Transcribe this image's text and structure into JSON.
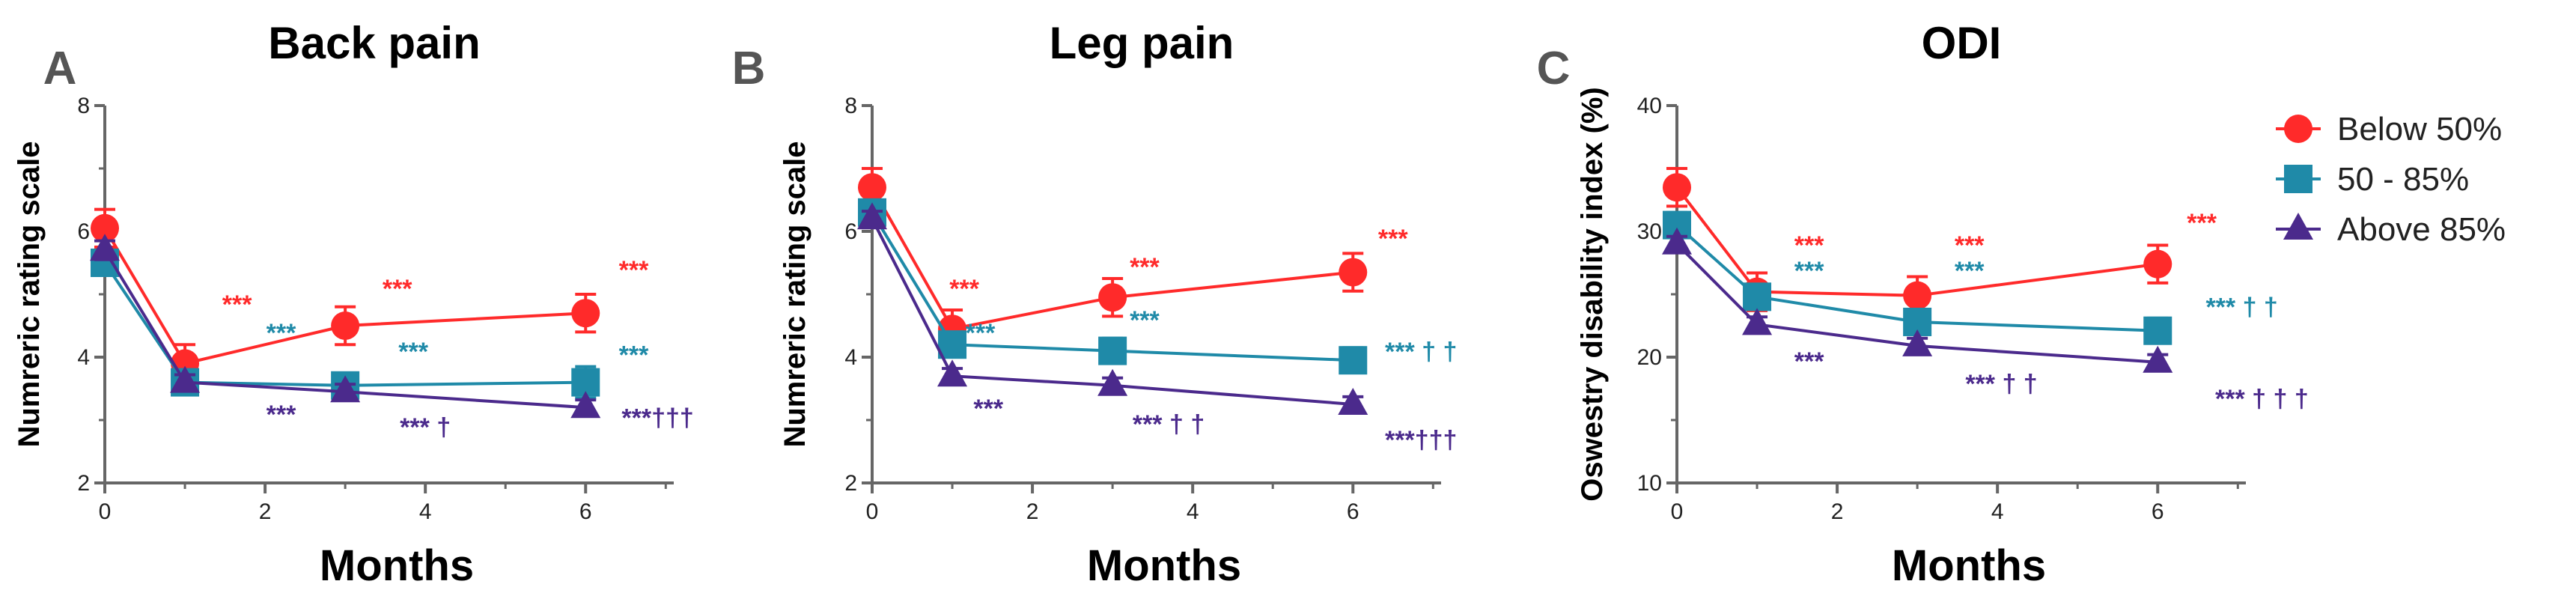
{
  "colors": {
    "below": "#ff2a2a",
    "mid": "#1f8aa8",
    "above": "#4b2a8c"
  },
  "legend": [
    {
      "key": "below",
      "label": "Below 50%",
      "marker": "circle"
    },
    {
      "key": "mid",
      "label": "50 - 85%",
      "marker": "square"
    },
    {
      "key": "above",
      "label": "Above 85%",
      "marker": "triangle"
    }
  ],
  "chart_data": [
    {
      "type": "line",
      "letter": "A",
      "title": "Back pain",
      "xlabel": "Months",
      "ylabel": "Numreric rating scale",
      "xlim": [
        0,
        7.1
      ],
      "ylim": [
        2,
        8
      ],
      "xticks": [
        0,
        2,
        4,
        6
      ],
      "yticks": [
        2,
        4,
        6,
        8
      ],
      "x": [
        0,
        1,
        3,
        6
      ],
      "series": [
        {
          "key": "below",
          "name": "Below 50%",
          "values": [
            6.05,
            3.9,
            4.5,
            4.7
          ],
          "err": [
            0.3,
            0.3,
            0.3,
            0.3
          ]
        },
        {
          "key": "mid",
          "name": "50 - 85%",
          "values": [
            5.5,
            3.6,
            3.55,
            3.6
          ],
          "err": [
            0.2,
            0.2,
            0.2,
            0.25
          ]
        },
        {
          "key": "above",
          "name": "Above 85%",
          "values": [
            5.7,
            3.6,
            3.45,
            3.2
          ],
          "err": [
            0.15,
            0.12,
            0.12,
            0.12
          ]
        }
      ],
      "annotations": [
        {
          "key": "below",
          "text": "***",
          "x": 1.65,
          "y": 4.7
        },
        {
          "key": "below",
          "text": "***",
          "x": 3.65,
          "y": 4.95
        },
        {
          "key": "below",
          "text": "***",
          "x": 6.6,
          "y": 5.25
        },
        {
          "key": "mid",
          "text": "***",
          "x": 2.2,
          "y": 4.25
        },
        {
          "key": "mid",
          "text": "***",
          "x": 3.85,
          "y": 3.95
        },
        {
          "key": "mid",
          "text": "***",
          "x": 6.6,
          "y": 3.9
        },
        {
          "key": "above",
          "text": "***",
          "x": 2.2,
          "y": 2.95
        },
        {
          "key": "above",
          "text": "*** †",
          "x": 4.0,
          "y": 2.75
        },
        {
          "key": "above",
          "text": "***†††",
          "x": 6.9,
          "y": 2.9
        }
      ]
    },
    {
      "type": "line",
      "letter": "B",
      "title": "Leg pain",
      "xlabel": "Months",
      "ylabel": "Numreric rating scale",
      "xlim": [
        0,
        7.1
      ],
      "ylim": [
        2,
        8
      ],
      "xticks": [
        0,
        2,
        4,
        6
      ],
      "yticks": [
        2,
        4,
        6,
        8
      ],
      "x": [
        0,
        1,
        3,
        6
      ],
      "series": [
        {
          "key": "below",
          "name": "Below 50%",
          "values": [
            6.7,
            4.45,
            4.95,
            5.35
          ],
          "err": [
            0.3,
            0.3,
            0.3,
            0.3
          ]
        },
        {
          "key": "mid",
          "name": "50 - 85%",
          "values": [
            6.3,
            4.2,
            4.1,
            3.95
          ],
          "err": [
            0.2,
            0.2,
            0.2,
            0.2
          ]
        },
        {
          "key": "above",
          "name": "Above 85%",
          "values": [
            6.2,
            3.7,
            3.55,
            3.25
          ],
          "err": [
            0.12,
            0.12,
            0.12,
            0.12
          ]
        }
      ],
      "annotations": [
        {
          "key": "below",
          "text": "***",
          "x": 1.15,
          "y": 4.95
        },
        {
          "key": "below",
          "text": "***",
          "x": 3.4,
          "y": 5.3
        },
        {
          "key": "below",
          "text": "***",
          "x": 6.5,
          "y": 5.75
        },
        {
          "key": "mid",
          "text": "***",
          "x": 1.35,
          "y": 4.25
        },
        {
          "key": "mid",
          "text": "***",
          "x": 3.4,
          "y": 4.45
        },
        {
          "key": "mid",
          "text": "*** † †",
          "x": 6.85,
          "y": 3.95
        },
        {
          "key": "above",
          "text": "***",
          "x": 1.45,
          "y": 3.05
        },
        {
          "key": "above",
          "text": "*** † †",
          "x": 3.7,
          "y": 2.8
        },
        {
          "key": "above",
          "text": "***†††",
          "x": 6.85,
          "y": 2.55
        }
      ]
    },
    {
      "type": "line",
      "letter": "C",
      "title": "ODI",
      "xlabel": "Months",
      "ylabel": "Oswestry disability index (%)",
      "xlim": [
        0,
        7.1
      ],
      "ylim": [
        10,
        40
      ],
      "xticks": [
        0,
        2,
        4,
        6
      ],
      "yticks": [
        10,
        20,
        30,
        40
      ],
      "x": [
        0,
        1,
        3,
        6
      ],
      "series": [
        {
          "key": "below",
          "name": "Below 50%",
          "values": [
            33.5,
            25.2,
            24.9,
            27.4
          ],
          "err": [
            1.5,
            1.5,
            1.5,
            1.5
          ]
        },
        {
          "key": "mid",
          "name": "50 - 85%",
          "values": [
            30.5,
            24.8,
            22.8,
            22.1
          ],
          "err": [
            1.0,
            1.0,
            1.0,
            1.0
          ]
        },
        {
          "key": "above",
          "name": "Above 85%",
          "values": [
            29.0,
            22.6,
            20.9,
            19.6
          ],
          "err": [
            0.6,
            0.6,
            0.6,
            0.6
          ]
        }
      ],
      "annotations": [
        {
          "key": "below",
          "text": "***",
          "x": 1.65,
          "y": 28.2
        },
        {
          "key": "below",
          "text": "***",
          "x": 3.65,
          "y": 28.2
        },
        {
          "key": "below",
          "text": "***",
          "x": 6.55,
          "y": 30.0
        },
        {
          "key": "mid",
          "text": "***",
          "x": 1.65,
          "y": 26.2
        },
        {
          "key": "mid",
          "text": "***",
          "x": 3.65,
          "y": 26.2
        },
        {
          "key": "mid",
          "text": "*** † †",
          "x": 7.05,
          "y": 23.3
        },
        {
          "key": "above",
          "text": "***",
          "x": 1.65,
          "y": 19.0
        },
        {
          "key": "above",
          "text": "*** † †",
          "x": 4.05,
          "y": 17.2
        },
        {
          "key": "above",
          "text": "*** † † †",
          "x": 7.3,
          "y": 16.0
        }
      ]
    }
  ]
}
